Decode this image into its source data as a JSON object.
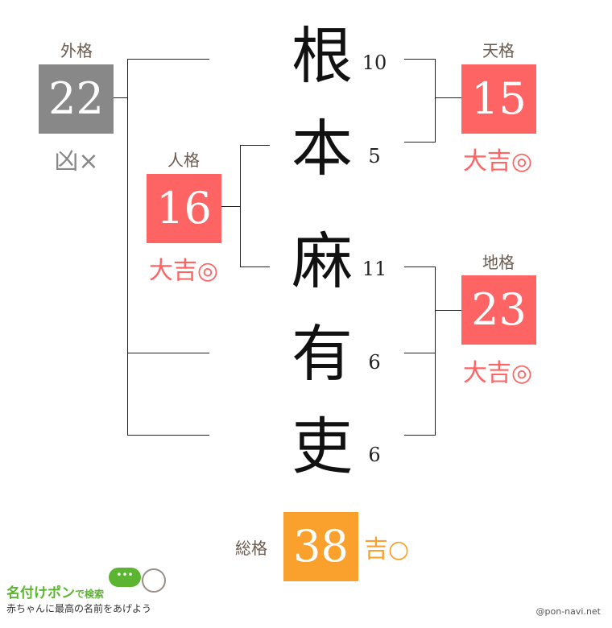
{
  "colors": {
    "good": "#fe6464",
    "bad": "#888888",
    "neutral": "#f9a12c",
    "label": "#6b5a4e"
  },
  "name": {
    "chars": [
      {
        "char": "根",
        "strokes": "10"
      },
      {
        "char": "本",
        "strokes": "5"
      },
      {
        "char": "麻",
        "strokes": "11"
      },
      {
        "char": "有",
        "strokes": "6"
      },
      {
        "char": "吏",
        "strokes": "6"
      }
    ]
  },
  "gaikaku": {
    "label": "外格",
    "value": "22",
    "fortune": "凶×"
  },
  "jinkaku": {
    "label": "人格",
    "value": "16",
    "fortune": "大吉◎"
  },
  "tenkaku": {
    "label": "天格",
    "value": "15",
    "fortune": "大吉◎"
  },
  "chikaku": {
    "label": "地格",
    "value": "23",
    "fortune": "大吉◎"
  },
  "soukaku": {
    "label": "総格",
    "value": "38",
    "fortune": "吉○"
  },
  "footer": {
    "logo_main": "名付けポン",
    "logo_sub": "で検索",
    "tagline": "赤ちゃんに最高の名前をあげよう",
    "site": "@pon-navi.net"
  }
}
